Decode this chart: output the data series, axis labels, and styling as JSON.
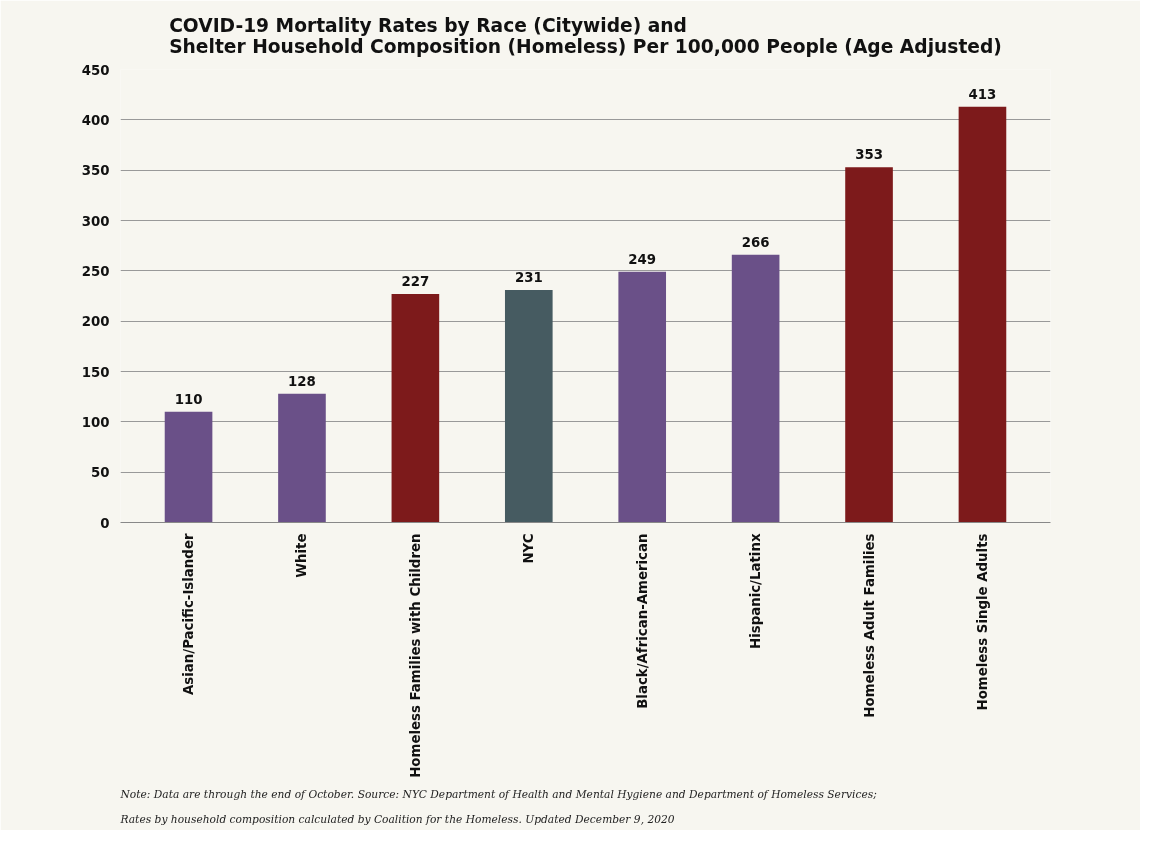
{
  "chart_data": {
    "type": "bar",
    "title": "COVID-19 Mortality Rates by Race (Citywide) and\nShelter Household Composition (Homeless) Per 100,000 People (Age Adjusted)",
    "categories": [
      "Asian/Pacific-Islander",
      "White",
      "Homeless Families with Children",
      "NYC",
      "Black/African-American",
      "Hispanic/Latinx",
      "Homeless Adult Families",
      "Homeless Single Adults"
    ],
    "values": [
      110,
      128,
      227,
      231,
      249,
      266,
      353,
      413
    ],
    "colors": [
      "#6a5088",
      "#6a5088",
      "#7d1a1b",
      "#465b61",
      "#6a5088",
      "#6a5088",
      "#7d1a1b",
      "#7d1a1b"
    ],
    "ylim": [
      0,
      450
    ],
    "yticks": [
      0,
      50,
      100,
      150,
      200,
      250,
      300,
      350,
      400,
      450
    ],
    "grid": "y",
    "data_labels": true,
    "annotations": [
      "Note: Data are through the end of October. Source: NYC Department of Health and Mental Hygiene and Department of Homeless Services;",
      "Rates by household composition calculated by Coalition for the Homeless. Updated December 9, 2020"
    ]
  }
}
